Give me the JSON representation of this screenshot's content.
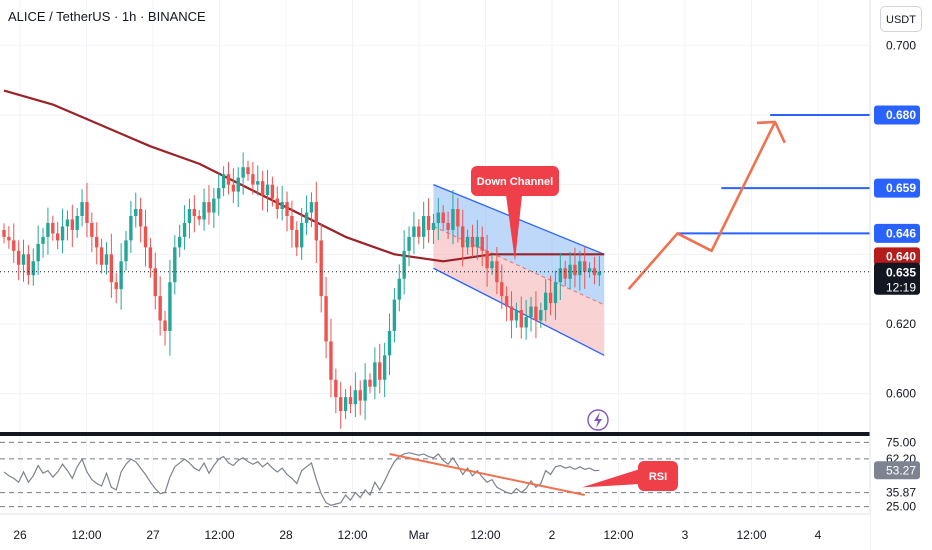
{
  "header": {
    "title": "ALICE / TetherUS · 1h · BINANCE",
    "currency": "USDT"
  },
  "colors": {
    "up": "#26a69a",
    "down": "#ef5350",
    "ma": "#9b2226",
    "channel_line": "#2962ff",
    "channel_fill_top": "#6fa8f5",
    "channel_fill_bottom": "#f4a6aa",
    "projection": "#f0714f",
    "level_line": "#2962ff",
    "callout": "#ef3f48",
    "rsi_line": "#7e8391",
    "rsi_trend": "#f0714f",
    "last_price_bg": "#131722",
    "ma_label_bg": "#b71c1c",
    "level_label_bg": "#2962ff",
    "rsi_value_bg": "#7e8391",
    "lightning": "#7e57c2"
  },
  "annotations": {
    "channel_label": "Down Channel",
    "rsi_label": "RSI"
  },
  "price_axis": {
    "ticks": [
      "0.700",
      "0.620",
      "0.600"
    ],
    "levels": [
      "0.680",
      "0.659",
      "0.646"
    ],
    "ma_value": "0.640",
    "last_price": "0.635",
    "countdown": "12:19"
  },
  "rsi_axis": {
    "ticks": [
      "75.00",
      "62.20",
      "35.87",
      "25.00"
    ],
    "current": "53.27"
  },
  "chart_data": [
    {
      "type": "candlestick",
      "ylim": [
        0.589,
        0.713
      ],
      "x_ticks": [
        "26",
        "12:00",
        "27",
        "12:00",
        "28",
        "12:00",
        "Mar",
        "12:00",
        "2",
        "12:00",
        "3",
        "12:00",
        "4"
      ],
      "close": [
        0.645,
        0.644,
        0.641,
        0.637,
        0.64,
        0.634,
        0.638,
        0.643,
        0.645,
        0.649,
        0.646,
        0.644,
        0.648,
        0.65,
        0.647,
        0.651,
        0.655,
        0.649,
        0.645,
        0.642,
        0.637,
        0.64,
        0.632,
        0.63,
        0.638,
        0.644,
        0.651,
        0.653,
        0.648,
        0.642,
        0.636,
        0.628,
        0.621,
        0.618,
        0.632,
        0.642,
        0.645,
        0.649,
        0.653,
        0.651,
        0.65,
        0.655,
        0.652,
        0.656,
        0.659,
        0.663,
        0.66,
        0.658,
        0.662,
        0.665,
        0.663,
        0.66,
        0.661,
        0.657,
        0.66,
        0.656,
        0.653,
        0.655,
        0.651,
        0.647,
        0.642,
        0.649,
        0.652,
        0.655,
        0.644,
        0.628,
        0.615,
        0.604,
        0.599,
        0.595,
        0.599,
        0.597,
        0.601,
        0.598,
        0.604,
        0.602,
        0.609,
        0.604,
        0.611,
        0.618,
        0.627,
        0.633,
        0.641,
        0.645,
        0.648,
        0.645,
        0.651,
        0.647,
        0.649,
        0.652,
        0.649,
        0.647,
        0.653,
        0.648,
        0.642,
        0.645,
        0.642,
        0.645,
        0.641,
        0.636,
        0.638,
        0.632,
        0.628,
        0.625,
        0.621,
        0.624,
        0.619,
        0.622,
        0.625,
        0.621,
        0.624,
        0.629,
        0.626,
        0.632,
        0.636,
        0.633,
        0.637,
        0.634,
        0.638,
        0.635,
        0.636,
        0.634,
        0.635
      ],
      "moving_average": {
        "points": [
          {
            "x": 0,
            "y": 0.687
          },
          {
            "x": 10,
            "y": 0.683
          },
          {
            "x": 20,
            "y": 0.677
          },
          {
            "x": 30,
            "y": 0.671
          },
          {
            "x": 40,
            "y": 0.666
          },
          {
            "x": 50,
            "y": 0.659
          },
          {
            "x": 60,
            "y": 0.652
          },
          {
            "x": 70,
            "y": 0.645
          },
          {
            "x": 80,
            "y": 0.64
          },
          {
            "x": 90,
            "y": 0.638
          },
          {
            "x": 100,
            "y": 0.64
          },
          {
            "x": 110,
            "y": 0.64
          },
          {
            "x": 123,
            "y": 0.64
          }
        ]
      },
      "channel": {
        "upper_start": {
          "x": 88,
          "y": 0.66
        },
        "upper_end": {
          "x": 123,
          "y": 0.64
        },
        "lower_start": {
          "x": 88,
          "y": 0.636
        },
        "lower_end": {
          "x": 123,
          "y": 0.611
        }
      },
      "projection_path": [
        {
          "x": 128,
          "y": 0.63
        },
        {
          "x": 138,
          "y": 0.646
        },
        {
          "x": 145,
          "y": 0.641
        },
        {
          "x": 158,
          "y": 0.678
        },
        {
          "x": 160,
          "y": 0.672
        }
      ],
      "levels": [
        0.68,
        0.659,
        0.646
      ],
      "level_starts": [
        157,
        147,
        138
      ]
    },
    {
      "type": "line",
      "name": "RSI",
      "ylim": [
        20,
        80
      ],
      "values": [
        52,
        49,
        47,
        44,
        52,
        44,
        49,
        57,
        51,
        53,
        48,
        52,
        58,
        53,
        47,
        56,
        62,
        52,
        46,
        43,
        41,
        51,
        40,
        38,
        52,
        58,
        62,
        60,
        55,
        50,
        44,
        39,
        35,
        36,
        48,
        56,
        59,
        62,
        59,
        55,
        53,
        59,
        51,
        57,
        62,
        64,
        59,
        57,
        61,
        63,
        60,
        58,
        60,
        56,
        59,
        55,
        52,
        55,
        50,
        47,
        43,
        53,
        56,
        59,
        46,
        35,
        28,
        26,
        27,
        28,
        34,
        30,
        36,
        32,
        38,
        34,
        44,
        38,
        45,
        53,
        60,
        64,
        66,
        67,
        66,
        65,
        66,
        64,
        63,
        66,
        61,
        58,
        63,
        57,
        50,
        55,
        49,
        53,
        48,
        44,
        46,
        40,
        38,
        36,
        35,
        39,
        36,
        39,
        45,
        40,
        43,
        53,
        50,
        56,
        57,
        55,
        56,
        54,
        56,
        54,
        55,
        53,
        53.27
      ],
      "trendline": [
        {
          "x": 79,
          "y": 66
        },
        {
          "x": 119,
          "y": 34
        }
      ],
      "bands": [
        75,
        62.2,
        35.87,
        25
      ]
    }
  ]
}
